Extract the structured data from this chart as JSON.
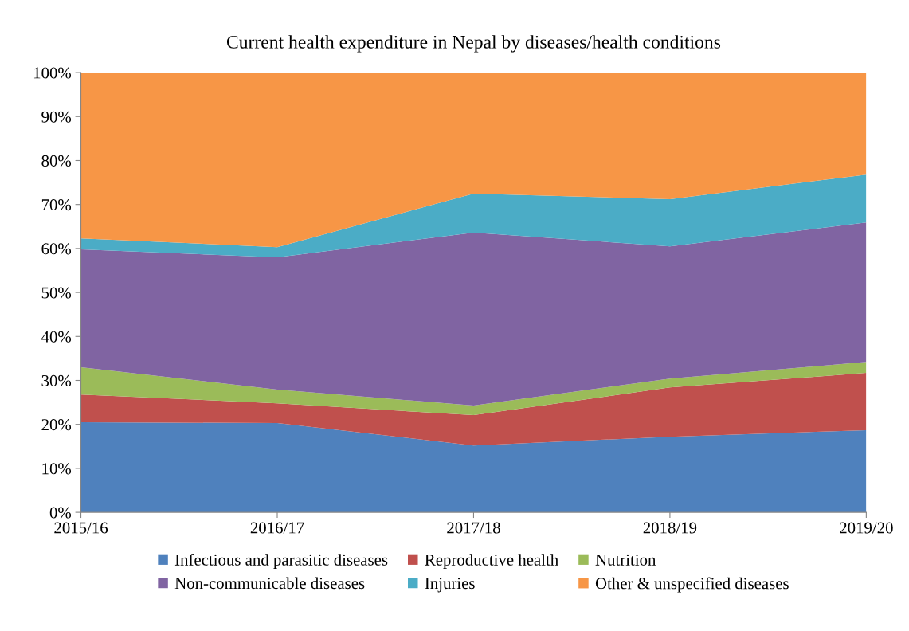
{
  "chart_data": {
    "type": "area",
    "stacked": true,
    "title": "Current health expenditure in Nepal by diseases/health conditions",
    "categories": [
      "2015/16",
      "2016/17",
      "2017/18",
      "2018/19",
      "2019/20"
    ],
    "series": [
      {
        "name": "Infectious and parasitic diseases",
        "color": "#4f81bd",
        "values": [
          20.5,
          20.3,
          15.2,
          17.2,
          18.7
        ]
      },
      {
        "name": "Reproductive health",
        "color": "#c0504d",
        "values": [
          6.3,
          4.5,
          6.9,
          11.2,
          13.0
        ]
      },
      {
        "name": "Nutrition",
        "color": "#9bbb59",
        "values": [
          6.2,
          3.1,
          2.2,
          2.0,
          2.5
        ]
      },
      {
        "name": "Non-communicable diseases",
        "color": "#8064a2",
        "values": [
          26.8,
          30.1,
          39.3,
          30.1,
          31.7
        ]
      },
      {
        "name": "Injuries",
        "color": "#4bacc6",
        "values": [
          2.5,
          2.3,
          8.9,
          10.7,
          10.9
        ]
      },
      {
        "name": "Other & unspecified diseases",
        "color": "#f79646",
        "values": [
          37.7,
          39.7,
          27.5,
          28.8,
          23.2
        ]
      }
    ],
    "ylim": [
      0,
      100
    ],
    "yticks": [
      {
        "value": 0,
        "label": "0%"
      },
      {
        "value": 10,
        "label": "10%"
      },
      {
        "value": 20,
        "label": "20%"
      },
      {
        "value": 30,
        "label": "30%"
      },
      {
        "value": 40,
        "label": "40%"
      },
      {
        "value": 50,
        "label": "50%"
      },
      {
        "value": 60,
        "label": "60%"
      },
      {
        "value": 70,
        "label": "70%"
      },
      {
        "value": 80,
        "label": "80%"
      },
      {
        "value": 90,
        "label": "90%"
      },
      {
        "value": 100,
        "label": "100%"
      }
    ],
    "grid": false,
    "legend": "bottom"
  }
}
